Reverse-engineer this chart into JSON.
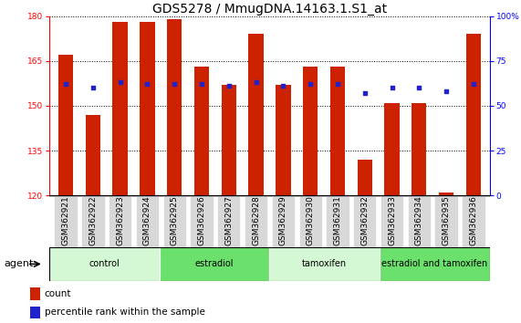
{
  "title": "GDS5278 / MmugDNA.14163.1.S1_at",
  "samples": [
    "GSM362921",
    "GSM362922",
    "GSM362923",
    "GSM362924",
    "GSM362925",
    "GSM362926",
    "GSM362927",
    "GSM362928",
    "GSM362929",
    "GSM362930",
    "GSM362931",
    "GSM362932",
    "GSM362933",
    "GSM362934",
    "GSM362935",
    "GSM362936"
  ],
  "bar_values": [
    167,
    147,
    178,
    178,
    179,
    163,
    157,
    174,
    157,
    163,
    163,
    132,
    151,
    151,
    121,
    174
  ],
  "dot_values": [
    62,
    60,
    63,
    62,
    62,
    62,
    61,
    63,
    61,
    62,
    62,
    57,
    60,
    60,
    58,
    62
  ],
  "groups": [
    {
      "label": "control",
      "start": 0,
      "end": 4,
      "color": "#d4f7d4"
    },
    {
      "label": "estradiol",
      "start": 4,
      "end": 8,
      "color": "#6ce06c"
    },
    {
      "label": "tamoxifen",
      "start": 8,
      "end": 12,
      "color": "#d4f7d4"
    },
    {
      "label": "estradiol and tamoxifen",
      "start": 12,
      "end": 16,
      "color": "#6ce06c"
    }
  ],
  "bar_color": "#cc2200",
  "dot_color": "#2222cc",
  "ylim_left": [
    120,
    180
  ],
  "ylim_right": [
    0,
    100
  ],
  "yticks_left": [
    120,
    135,
    150,
    165,
    180
  ],
  "yticks_right": [
    0,
    25,
    50,
    75,
    100
  ],
  "background_color": "#ffffff",
  "agent_label": "agent",
  "legend_count_label": "count",
  "legend_pct_label": "percentile rank within the sample",
  "title_fontsize": 10,
  "tick_fontsize": 6.5,
  "label_fontsize": 8,
  "xtick_gray": "#cccccc"
}
